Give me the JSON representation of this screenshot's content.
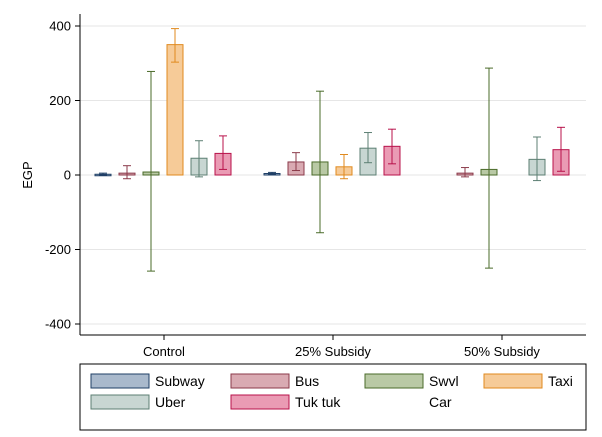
{
  "chart_data": {
    "type": "bar",
    "title": "",
    "xlabel": "",
    "ylabel": "EGP",
    "ylim": [
      -420,
      420
    ],
    "yticks": [
      -400,
      -200,
      0,
      200,
      400
    ],
    "grid": true,
    "legend_position": "bottom",
    "categories": [
      "Control",
      "25% Subsidy",
      "50% Subsidy"
    ],
    "series": [
      {
        "name": "Subway",
        "color": "#1f3f66",
        "fill": "#a9b9cc",
        "values": [
          2,
          4,
          null
        ],
        "err_low": [
          0,
          2,
          null
        ],
        "err_high": [
          5,
          7,
          null
        ]
      },
      {
        "name": "Bus",
        "color": "#8b3a4a",
        "fill": "#d9aab2",
        "values": [
          5,
          35,
          5
        ],
        "err_low": [
          -10,
          12,
          -5
        ],
        "err_high": [
          25,
          60,
          20
        ]
      },
      {
        "name": "Swvl",
        "color": "#4a6b2a",
        "fill": "#b9c9a5",
        "values": [
          8,
          35,
          15
        ],
        "err_low": [
          -258,
          -155,
          -250
        ],
        "err_high": [
          278,
          225,
          287
        ]
      },
      {
        "name": "Taxi",
        "color": "#e08a1e",
        "fill": "#f6cb98",
        "values": [
          350,
          22,
          null
        ],
        "err_low": [
          303,
          -10,
          null
        ],
        "err_high": [
          393,
          55,
          null
        ]
      },
      {
        "name": "Uber",
        "color": "#5c7f73",
        "fill": "#c8d6d2",
        "values": [
          45,
          72,
          42
        ],
        "err_low": [
          -5,
          33,
          -15
        ],
        "err_high": [
          92,
          114,
          102
        ]
      },
      {
        "name": "Tuk tuk",
        "color": "#b8114a",
        "fill": "#ea9bb4",
        "values": [
          58,
          77,
          68
        ],
        "err_low": [
          15,
          30,
          10
        ],
        "err_high": [
          105,
          123,
          128
        ]
      },
      {
        "name": "Car",
        "color": "#ffffff",
        "fill": "#ffffff",
        "values": [
          null,
          null,
          null
        ],
        "err_low": [
          null,
          null,
          null
        ],
        "err_high": [
          null,
          null,
          null
        ]
      }
    ]
  }
}
